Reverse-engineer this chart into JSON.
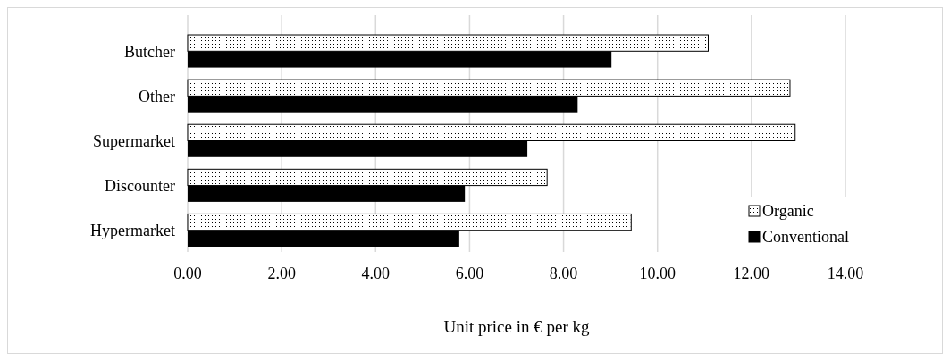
{
  "chart_data": {
    "type": "bar",
    "orientation": "horizontal",
    "xlabel": "Unit price in € per kg",
    "categories": [
      "Butcher",
      "Other",
      "Supermarket",
      "Discounter",
      "Hypermarket"
    ],
    "series": [
      {
        "name": "Organic",
        "color": "#ffffff",
        "values": [
          11.08,
          12.82,
          12.93,
          7.65,
          9.44
        ]
      },
      {
        "name": "Conventional",
        "color": "#000000",
        "values": [
          9.02,
          8.3,
          7.23,
          5.9,
          5.78
        ]
      }
    ],
    "xlim": [
      0,
      14
    ],
    "xticks": [
      {
        "value": 0,
        "label": "0.00"
      },
      {
        "value": 2,
        "label": "2.00"
      },
      {
        "value": 4,
        "label": "4.00"
      },
      {
        "value": 6,
        "label": "6.00"
      },
      {
        "value": 8,
        "label": "8.00"
      },
      {
        "value": 10,
        "label": "10.00"
      },
      {
        "value": 12,
        "label": "12.00"
      },
      {
        "value": 14,
        "label": "14.00"
      }
    ],
    "grid": "x",
    "legend": "bottom right"
  }
}
